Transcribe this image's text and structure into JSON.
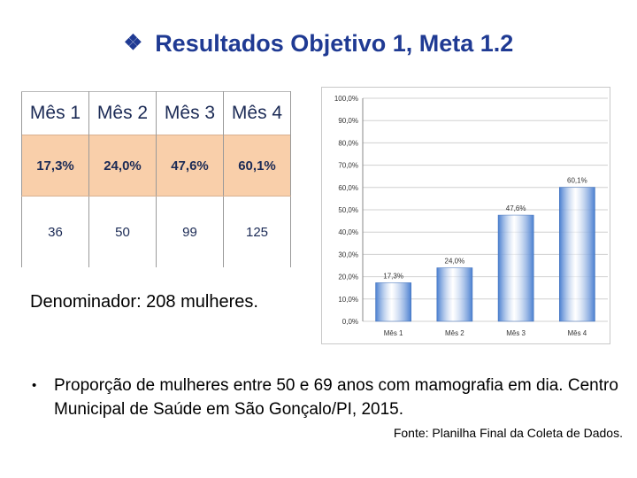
{
  "title": "Resultados Objetivo 1, Meta 1.2",
  "title_bullet_icon": "diamond-bullet-icon",
  "table": {
    "headers": [
      "Mês 1",
      "Mês 2",
      "Mês 3",
      "Mês 4"
    ],
    "percentages": [
      "17,3%",
      "24,0%",
      "47,6%",
      "60,1%"
    ],
    "counts": [
      "36",
      "50",
      "99",
      "125"
    ]
  },
  "denominator": "Denominador: 208 mulheres.",
  "caption": "Proporção de mulheres entre 50 e 69 anos com mamografia em dia. Centro Municipal de Saúde em São Gonçalo/PI, 2015.",
  "source": "Fonte: Planilha Final da Coleta de Dados.",
  "chart_data": {
    "type": "bar",
    "categories": [
      "Mês 1",
      "Mês 2",
      "Mês 3",
      "Mês 4"
    ],
    "values": [
      17.3,
      24.0,
      47.6,
      60.1
    ],
    "data_labels": [
      "17,3%",
      "24,0%",
      "47,6%",
      "60,1%"
    ],
    "yticks": [
      "0,0%",
      "10,0%",
      "20,0%",
      "30,0%",
      "40,0%",
      "50,0%",
      "60,0%",
      "70,0%",
      "80,0%",
      "90,0%",
      "100,0%"
    ],
    "ylim": [
      0,
      100
    ],
    "grid": true,
    "legend": "none",
    "bar_color": "#4a7fd0",
    "bar_highlight": "#ffffff"
  }
}
